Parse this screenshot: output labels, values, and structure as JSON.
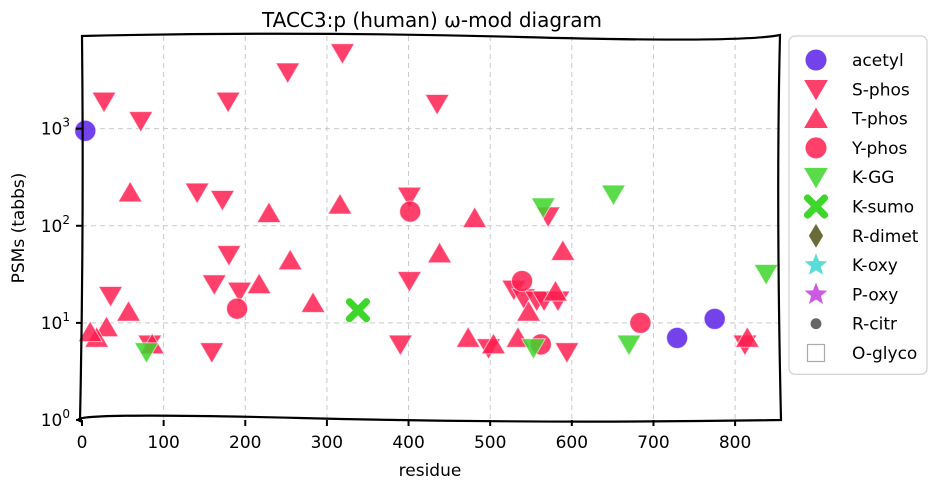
{
  "chart_data": {
    "type": "scatter",
    "title": "TACC3:p (human) ω-mod diagram",
    "xlabel": "residue",
    "ylabel": "PSMs (tabbs)",
    "xlim": [
      0,
      855
    ],
    "ylim": [
      1,
      9000
    ],
    "yscale": "log",
    "grid": true,
    "legend_position": "right, outside plot",
    "x_ticks": [
      {
        "value": 0,
        "label": "0"
      },
      {
        "value": 100,
        "label": "100"
      },
      {
        "value": 200,
        "label": "200"
      },
      {
        "value": 300,
        "label": "300"
      },
      {
        "value": 400,
        "label": "400"
      },
      {
        "value": 500,
        "label": "500"
      },
      {
        "value": 600,
        "label": "600"
      },
      {
        "value": 700,
        "label": "700"
      },
      {
        "value": 800,
        "label": "800"
      }
    ],
    "y_ticks": [
      {
        "value": 1,
        "base": "10",
        "exp": "0"
      },
      {
        "value": 10,
        "base": "10",
        "exp": "1"
      },
      {
        "value": 100,
        "base": "10",
        "exp": "2"
      },
      {
        "value": 1000,
        "base": "10",
        "exp": "3"
      }
    ],
    "series": [
      {
        "name": "acetyl",
        "marker": "circle",
        "color": "#5b21e6",
        "points": [
          [
            4,
            950
          ],
          [
            729,
            7
          ],
          [
            775,
            11
          ]
        ]
      },
      {
        "name": "S-phos",
        "marker": "triangle-down",
        "color": "#ff1f50",
        "points": [
          [
            27,
            1900
          ],
          [
            72,
            1200
          ],
          [
            141,
            220
          ],
          [
            179,
            1900
          ],
          [
            252,
            3800
          ],
          [
            319,
            6000
          ],
          [
            435,
            1800
          ],
          [
            401,
            200
          ],
          [
            172,
            185
          ],
          [
            180,
            50
          ],
          [
            162,
            25
          ],
          [
            193,
            21
          ],
          [
            401,
            27
          ],
          [
            571,
            125
          ],
          [
            159,
            5
          ],
          [
            390,
            6
          ],
          [
            498,
            5.5
          ],
          [
            529,
            22
          ],
          [
            541,
            18
          ],
          [
            557,
            17
          ],
          [
            566,
            17
          ],
          [
            583,
            17
          ],
          [
            594,
            5
          ],
          [
            812,
            6
          ],
          [
            35,
            19
          ],
          [
            83,
            6
          ]
        ]
      },
      {
        "name": "T-phos",
        "marker": "triangle-up",
        "color": "#ff1f50",
        "points": [
          [
            59,
            220
          ],
          [
            229,
            135
          ],
          [
            316,
            165
          ],
          [
            481,
            120
          ],
          [
            438,
            52
          ],
          [
            589,
            55
          ],
          [
            255,
            44
          ],
          [
            217,
            25
          ],
          [
            283,
            16
          ],
          [
            57,
            13
          ],
          [
            30,
            9
          ],
          [
            18,
            7
          ],
          [
            10,
            8
          ],
          [
            473,
            7
          ],
          [
            504,
            6
          ],
          [
            534,
            7
          ],
          [
            547,
            13
          ],
          [
            580,
            21
          ],
          [
            815,
            7
          ],
          [
            86,
            6
          ]
        ]
      },
      {
        "name": "Y-phos",
        "marker": "circle",
        "color": "#ff1f50",
        "points": [
          [
            402,
            140
          ],
          [
            190,
            14
          ],
          [
            539,
            27
          ],
          [
            562,
            6
          ],
          [
            684,
            10
          ]
        ]
      },
      {
        "name": "K-GG",
        "marker": "triangle-down",
        "color": "#3dd62a",
        "points": [
          [
            565,
            155
          ],
          [
            651,
            210
          ],
          [
            838,
            32
          ],
          [
            79,
            5
          ],
          [
            670,
            6
          ],
          [
            553,
            5.5
          ]
        ]
      },
      {
        "name": "K-sumo",
        "marker": "x",
        "color": "#3dd62a",
        "points": [
          [
            338,
            13.5
          ]
        ]
      },
      {
        "name": "R-dimet",
        "marker": "diamond",
        "color": "#6b6b3a",
        "points": []
      },
      {
        "name": "K-oxy",
        "marker": "star",
        "color": "#3dd6d0",
        "points": []
      },
      {
        "name": "P-oxy",
        "marker": "star",
        "color": "#c13ddb",
        "points": []
      },
      {
        "name": "R-citr",
        "marker": "small-circle",
        "color": "#666666",
        "points": []
      },
      {
        "name": "O-glyco",
        "marker": "open-square",
        "color": "#aaaaaa",
        "points": []
      }
    ]
  }
}
